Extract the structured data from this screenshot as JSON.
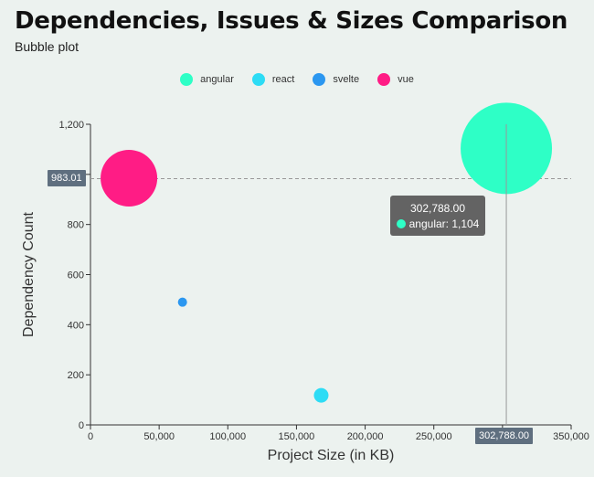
{
  "title": "Dependencies, Issues & Sizes Comparison",
  "subtitle": "Bubble plot",
  "chart_data": {
    "type": "scatter",
    "subtype": "bubble",
    "xlabel": "Project Size (in KB)",
    "ylabel": "Dependency Count",
    "xlim": [
      0,
      350000
    ],
    "ylim": [
      0,
      1200
    ],
    "x_ticks": [
      0,
      50000,
      100000,
      150000,
      200000,
      250000,
      300000,
      350000
    ],
    "x_tick_labels": [
      "0",
      "50,000",
      "100,000",
      "150,000",
      "200,000",
      "250,000",
      "300,000",
      "350,000"
    ],
    "y_ticks": [
      0,
      200,
      400,
      600,
      800,
      1000,
      1200
    ],
    "y_tick_labels": [
      "0",
      "200",
      "400",
      "600",
      "800",
      "",
      "1,200"
    ],
    "legend_position": "top-center",
    "series": [
      {
        "name": "angular",
        "color": "#2effc6",
        "x": 302788,
        "y": 1104,
        "bubble_size": 100
      },
      {
        "name": "react",
        "color": "#2ddcf5",
        "x": 168000,
        "y": 118,
        "bubble_size": 16
      },
      {
        "name": "svelte",
        "color": "#2b97f0",
        "x": 67000,
        "y": 490,
        "bubble_size": 10
      },
      {
        "name": "vue",
        "color": "#ff1c85",
        "x": 28000,
        "y": 985,
        "bubble_size": 62
      }
    ],
    "tooltip": {
      "header": "302,788.00",
      "series": "angular",
      "text": "angular: 1,104"
    },
    "crosshair": {
      "x_label": "302,788.00",
      "y_label": "983.01",
      "x_value": 302788,
      "y_value": 983.01
    }
  }
}
